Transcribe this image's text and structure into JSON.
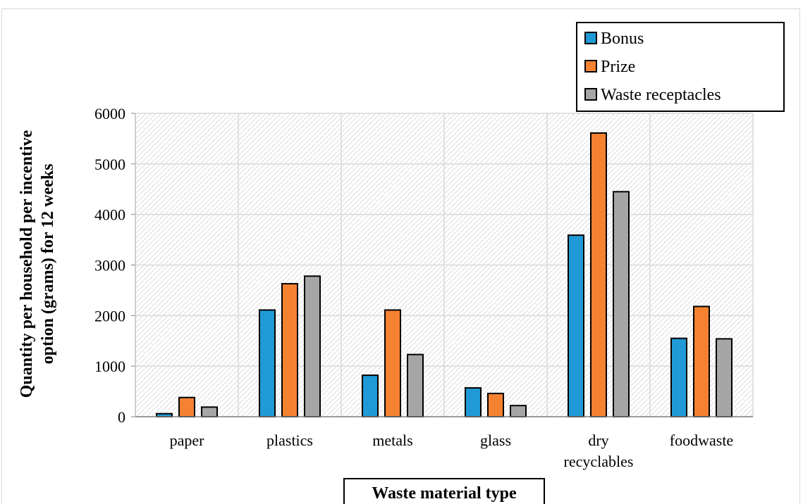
{
  "chart_data": {
    "type": "bar",
    "xlabel": "Waste material type",
    "ylabel": [
      "Quantity per household per incentive",
      "option (grams) for 12 weeks"
    ],
    "categories": [
      [
        "paper"
      ],
      [
        "plastics"
      ],
      [
        "metals"
      ],
      [
        "glass"
      ],
      [
        "dry",
        "recyclables"
      ],
      [
        "foodwaste"
      ]
    ],
    "ylim": [
      0,
      6000
    ],
    "yticks": [
      "0",
      "1000",
      "2000",
      "3000",
      "4000",
      "5000",
      "6000"
    ],
    "grid": true,
    "legend_position": "top-right",
    "series": [
      {
        "name": "Bonus",
        "color": "#1f9ad6",
        "values": [
          60,
          2110,
          820,
          570,
          3590,
          1550
        ]
      },
      {
        "name": "Prize",
        "color": "#f58231",
        "values": [
          380,
          2630,
          2110,
          460,
          5610,
          2180
        ]
      },
      {
        "name": "Waste receptacles",
        "color": "#a6a6a6",
        "values": [
          190,
          2780,
          1230,
          220,
          4450,
          1540
        ]
      }
    ]
  }
}
